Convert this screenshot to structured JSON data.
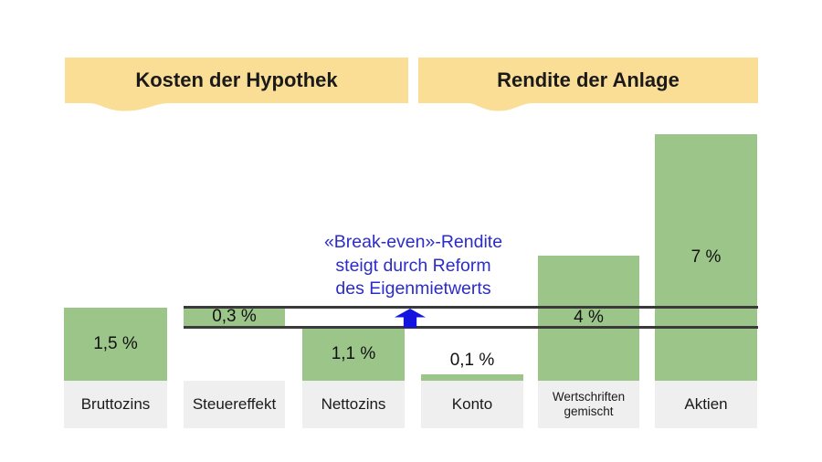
{
  "headers": [
    {
      "label": "Kosten der Hypothek"
    },
    {
      "label": "Rendite der Anlage"
    }
  ],
  "annotation": {
    "line1": "«Break-even»-Rendite",
    "line2": "steigt durch Reform",
    "line3": "des Eigenmietwerts"
  },
  "chart_data": {
    "type": "bar",
    "title": "",
    "categories": [
      "Bruttozins",
      "Steuereffekt",
      "Nettozins",
      "Konto",
      "Wertschriften gemischt",
      "Aktien"
    ],
    "values": [
      1.5,
      0.3,
      1.1,
      0.1,
      4.0,
      7.0
    ],
    "value_labels": [
      "1,5 %",
      "0,3 %",
      "1,1 %",
      "0,1 %",
      "4 %",
      "7 %"
    ],
    "unit": "%",
    "groups": [
      {
        "label": "Kosten der Hypothek",
        "members": [
          "Bruttozins",
          "Steuereffekt",
          "Nettozins"
        ]
      },
      {
        "label": "Rendite der Anlage",
        "members": [
          "Konto",
          "Wertschriften gemischt",
          "Aktien"
        ]
      }
    ],
    "annotation_text": "«Break-even»-Rendite steigt durch Reform des Eigenmietwerts",
    "band_lines_pct": [
      1.1,
      1.5
    ],
    "legend": "none",
    "grid": false
  },
  "colors": {
    "bar_green": "#9CC689",
    "header_yellow": "#FADE96",
    "category_gray": "#EFEFEF",
    "band_line_dark": "#3A3A3A",
    "annotation_blue": "#2C2CC8",
    "arrow_blue": "#1414E0"
  }
}
